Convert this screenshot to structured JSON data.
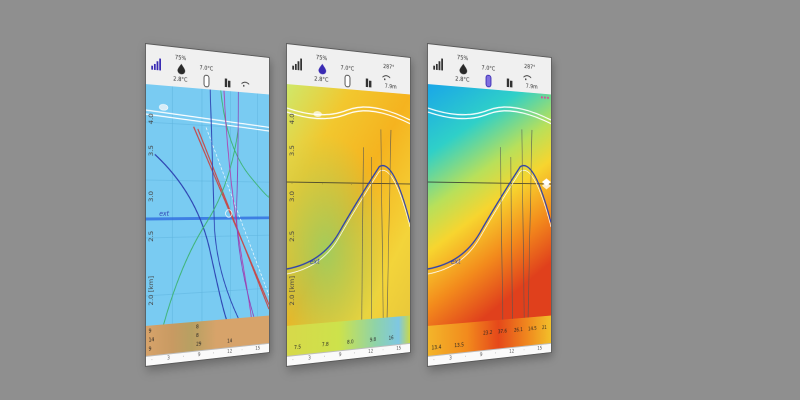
{
  "panels": [
    {
      "header": {
        "humidity": "75%",
        "dewpoint": "2.8°C",
        "temperature": "7.0°C",
        "wind_dir": "",
        "wind_speed": ""
      },
      "y_ticks": [
        "4.0",
        "3.5",
        "3.0",
        "2.5",
        "2.0 [km]"
      ],
      "ext_label": "ext",
      "footer_rows": [
        [
          "9",
          "8"
        ],
        [
          "14",
          "8"
        ],
        [
          "9",
          "29",
          "14"
        ]
      ],
      "scale": [
        "·",
        "3",
        "·",
        "9",
        "·",
        "12",
        "·",
        "15"
      ]
    },
    {
      "header": {
        "humidity": "75%",
        "dewpoint": "2.8°C",
        "temperature": "7.0°C",
        "wind_dir": "287°",
        "wind_speed": "7.9m"
      },
      "y_ticks": [
        "4.0",
        "3.5",
        "3.0",
        "2.5",
        "2.0 [km]"
      ],
      "ext_label": "ext",
      "footer_rows": [
        [
          "7.5",
          "7.8",
          "8.0",
          "9.8",
          "16"
        ]
      ],
      "scale": [
        "·",
        "3",
        "·",
        "9",
        "·",
        "12",
        "·",
        "15"
      ]
    },
    {
      "header": {
        "humidity": "75%",
        "dewpoint": "2.8°C",
        "temperature": "7.0°C",
        "wind_dir": "287°",
        "wind_speed": "7.9m"
      },
      "y_ticks": [
        "",
        "",
        "",
        "",
        ""
      ],
      "ext_label": "ext",
      "footer_rows": [
        [
          "13.4",
          "13.5",
          "23.2",
          "37.6",
          "26.1",
          "14.5",
          "21"
        ]
      ],
      "scale": [
        "·",
        "3",
        "·",
        "9",
        "·",
        "12",
        "·",
        "15"
      ]
    }
  ],
  "colors": {
    "background": "#8f8f8f",
    "panel_bg": "#f4f4f4",
    "sky_blue": "#79cbf2",
    "accent_blue": "#2b3fb0",
    "warm_red": "#e0401c"
  },
  "icons": [
    "signal-bars-icon",
    "humidity-drop-icon",
    "probe-icon",
    "thermometer-icon",
    "wind-gust-icon",
    "layers-icon"
  ]
}
